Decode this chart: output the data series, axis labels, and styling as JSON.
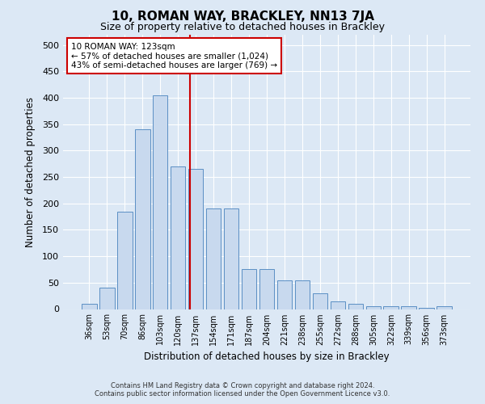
{
  "title": "10, ROMAN WAY, BRACKLEY, NN13 7JA",
  "subtitle": "Size of property relative to detached houses in Brackley",
  "xlabel": "Distribution of detached houses by size in Brackley",
  "ylabel": "Number of detached properties",
  "bar_values": [
    10,
    40,
    185,
    340,
    405,
    270,
    265,
    190,
    190,
    75,
    75,
    55,
    55,
    30,
    15,
    10,
    5,
    5,
    5,
    2,
    5
  ],
  "bar_labels": [
    "36sqm",
    "53sqm",
    "70sqm",
    "86sqm",
    "103sqm",
    "120sqm",
    "137sqm",
    "154sqm",
    "171sqm",
    "187sqm",
    "204sqm",
    "221sqm",
    "238sqm",
    "255sqm",
    "272sqm",
    "288sqm",
    "305sqm",
    "322sqm",
    "339sqm",
    "356sqm",
    "373sqm"
  ],
  "bar_color": "#c8d9ee",
  "bar_edge_color": "#5b8fc4",
  "vline_color": "#cc0000",
  "annotation_text": "10 ROMAN WAY: 123sqm\n← 57% of detached houses are smaller (1,024)\n43% of semi-detached houses are larger (769) →",
  "annotation_box_color": "white",
  "annotation_box_edge_color": "#cc0000",
  "footer_line1": "Contains HM Land Registry data © Crown copyright and database right 2024.",
  "footer_line2": "Contains public sector information licensed under the Open Government Licence v3.0.",
  "ylim": [
    0,
    520
  ],
  "yticks": [
    0,
    50,
    100,
    150,
    200,
    250,
    300,
    350,
    400,
    450,
    500
  ],
  "background_color": "#dce8f5",
  "grid_color": "#ffffff",
  "title_fontsize": 11,
  "subtitle_fontsize": 9
}
